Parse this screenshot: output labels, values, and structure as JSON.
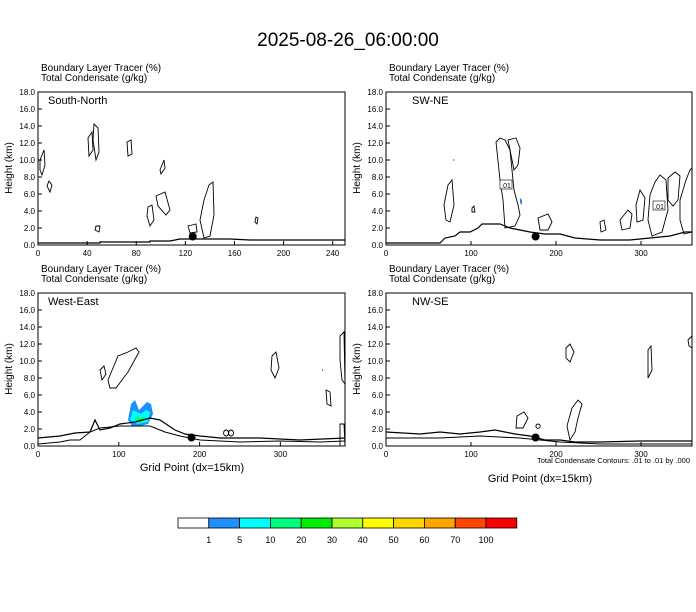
{
  "title": "2025-08-26_06:00:00",
  "header_line1": "Boundary Layer Tracer   (%)",
  "header_line2": "Total Condensate   (g/kg)",
  "ylabel": "Height (km)",
  "xlabel": "Grid Point (dx=15km)",
  "contour_note": "Total Condensate Contours: .01 to .01 by .000",
  "colorbar": {
    "colors": [
      "#ffffff",
      "#1e90ff",
      "#00ffff",
      "#00ff7f",
      "#00ee00",
      "#adff2f",
      "#ffff00",
      "#ffd700",
      "#ffa500",
      "#ff4500",
      "#ff0000"
    ],
    "labels": [
      "1",
      "5",
      "10",
      "20",
      "30",
      "40",
      "50",
      "60",
      "70",
      "100"
    ]
  },
  "chart_data": [
    {
      "type": "contour",
      "panel": "South-North",
      "ylim": [
        0,
        18
      ],
      "xlim": [
        0,
        250
      ],
      "xticks": [
        "0",
        "40",
        "80",
        "120",
        "160",
        "200",
        "240"
      ],
      "yticks": [
        "0.0",
        "2.0",
        "4.0",
        "6.0",
        "8.0",
        "10.0",
        "12.0",
        "14.0",
        "16.0",
        "18.0"
      ],
      "marker": {
        "x": 126,
        "y": 1.0
      }
    },
    {
      "type": "contour",
      "panel": "SW-NE",
      "ylim": [
        0,
        18
      ],
      "xlim": [
        0,
        360
      ],
      "xticks": [
        "0",
        "100",
        "200",
        "300"
      ],
      "yticks": [
        "0.0",
        "2.0",
        "4.0",
        "6.0",
        "8.0",
        "10.0",
        "12.0",
        "14.0",
        "16.0",
        "18.0"
      ],
      "contour_labels": [
        ".01",
        ".01"
      ],
      "marker": {
        "x": 176,
        "y": 1.0
      }
    },
    {
      "type": "contour",
      "panel": "West-East",
      "ylim": [
        0,
        18
      ],
      "xlim": [
        0,
        380
      ],
      "xticks": [
        "0",
        "100",
        "200",
        "300"
      ],
      "yticks": [
        "0.0",
        "2.0",
        "4.0",
        "6.0",
        "8.0",
        "10.0",
        "12.0",
        "14.0",
        "16.0",
        "18.0"
      ],
      "marker": {
        "x": 190,
        "y": 1.0
      }
    },
    {
      "type": "contour",
      "panel": "NW-SE",
      "ylim": [
        0,
        18
      ],
      "xlim": [
        0,
        360
      ],
      "xticks": [
        "0",
        "100",
        "200",
        "300"
      ],
      "yticks": [
        "0.0",
        "2.0",
        "4.0",
        "6.0",
        "8.0",
        "10.0",
        "12.0",
        "14.0",
        "16.0",
        "18.0"
      ],
      "marker": {
        "x": 176,
        "y": 1.0
      }
    }
  ]
}
